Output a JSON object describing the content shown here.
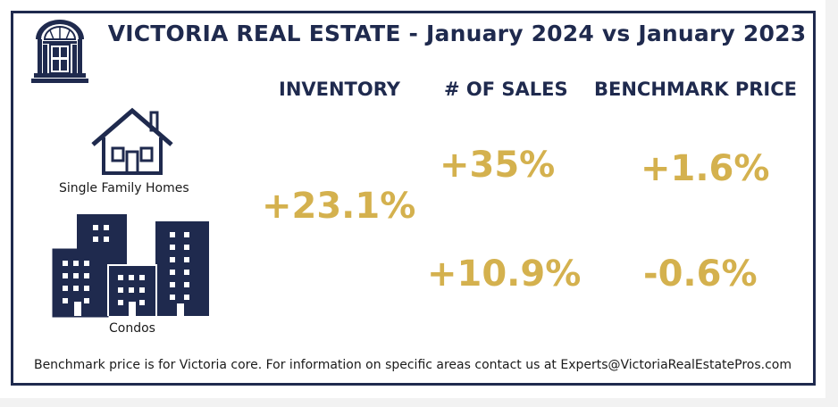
{
  "title": "VICTORIA REAL ESTATE - January 2024 vs January 2023",
  "columns": {
    "inventory": "INVENTORY",
    "sales": "# OF SALES",
    "benchmark": "BENCHMARK PRICE"
  },
  "rows": {
    "single_family": {
      "label": "Single Family Homes",
      "sales": "+35%",
      "benchmark": "+1.6%"
    },
    "condos": {
      "label": "Condos",
      "sales": "+10.9%",
      "benchmark": "-0.6%"
    }
  },
  "inventory_combined": "+23.1%",
  "footer": "Benchmark price is for Victoria core. For information on specific areas contact us at Experts@VictoriaRealEstatePros.com",
  "colors": {
    "navy": "#1f2a4e",
    "gold": "#d4b14e"
  },
  "icons": [
    "door-logo-icon",
    "house-icon",
    "condo-buildings-icon"
  ]
}
